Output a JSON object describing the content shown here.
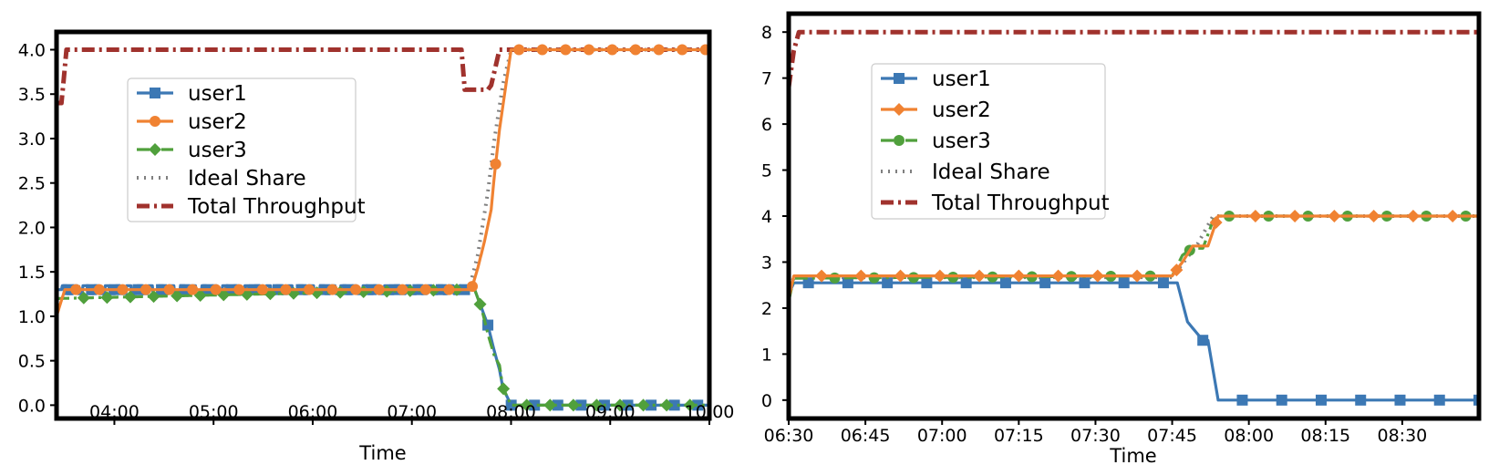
{
  "chart_data": [
    {
      "type": "line",
      "xlabel": "Time",
      "ylabel": "",
      "x_unit": "HH:MM",
      "xlim": [
        "03:25",
        "10:00"
      ],
      "ylim": [
        -0.15,
        4.2
      ],
      "grid": false,
      "legend_placement": "upper-left",
      "x_ticks": [
        "04:00",
        "05:00",
        "06:00",
        "07:00",
        "08:00",
        "09:00",
        "10:00"
      ],
      "y_ticks": [
        "0.0",
        "0.5",
        "1.0",
        "1.5",
        "2.0",
        "2.5",
        "3.0",
        "3.5",
        "4.0"
      ],
      "series": [
        {
          "name": "user1",
          "color": "#3c78b4",
          "style": "solid",
          "marker": "square",
          "x": [
            "03:25",
            "07:30",
            "07:38",
            "07:42",
            "07:46",
            "07:50",
            "07:53",
            "07:55",
            "08:00",
            "08:30",
            "09:00",
            "09:30",
            "10:00"
          ],
          "y": [
            1.3,
            1.3,
            1.3,
            1.1,
            0.9,
            0.6,
            0.4,
            0.2,
            0.0,
            0.0,
            0.0,
            0.0,
            0.0
          ]
        },
        {
          "name": "user2",
          "color": "#f08232",
          "style": "solid",
          "marker": "circle",
          "x": [
            "03:25",
            "03:30",
            "07:30",
            "07:36",
            "07:40",
            "07:44",
            "07:48",
            "07:50",
            "07:53",
            "08:00",
            "08:30",
            "09:00",
            "09:30",
            "10:00"
          ],
          "y": [
            1.0,
            1.3,
            1.3,
            1.3,
            1.55,
            1.85,
            2.2,
            2.6,
            3.1,
            4.0,
            4.0,
            4.0,
            4.0,
            4.0
          ]
        },
        {
          "name": "user3",
          "color": "#50a03c",
          "style": "dashdot",
          "marker": "diamond",
          "x": [
            "03:25",
            "07:30",
            "07:38",
            "07:42",
            "07:46",
            "07:50",
            "07:53",
            "07:55",
            "08:00",
            "08:30",
            "09:00",
            "09:30",
            "10:00"
          ],
          "y": [
            1.2,
            1.3,
            1.3,
            1.1,
            0.8,
            0.55,
            0.45,
            0.2,
            0.0,
            0.0,
            0.0,
            0.0,
            0.0
          ]
        },
        {
          "name": "Ideal Share",
          "color": "#808080",
          "style": "dotted",
          "marker": "none",
          "x": [
            "03:25",
            "07:35",
            "07:40",
            "07:46",
            "07:50",
            "07:55",
            "08:00",
            "10:00"
          ],
          "y": [
            1.33,
            1.33,
            1.7,
            2.4,
            3.0,
            3.6,
            4.0,
            4.0
          ]
        },
        {
          "name": "Total Throughput",
          "color": "#a0322d",
          "style": "dashdot",
          "marker": "none",
          "x": [
            "03:25",
            "03:28",
            "03:31",
            "07:30",
            "07:32",
            "07:46",
            "07:48",
            "07:53",
            "10:00"
          ],
          "y": [
            3.4,
            3.4,
            4.0,
            4.0,
            3.55,
            3.55,
            3.6,
            4.0,
            4.0
          ]
        }
      ]
    },
    {
      "type": "line",
      "xlabel": "Time",
      "ylabel": "",
      "x_unit": "HH:MM",
      "xlim": [
        "06:30",
        "08:45"
      ],
      "ylim": [
        -0.4,
        8.4
      ],
      "grid": false,
      "legend_placement": "upper-left",
      "x_ticks": [
        "06:30",
        "06:45",
        "07:00",
        "07:15",
        "07:30",
        "07:45",
        "08:00",
        "08:15",
        "08:30"
      ],
      "y_ticks": [
        "0",
        "1",
        "2",
        "3",
        "4",
        "5",
        "6",
        "7",
        "8"
      ],
      "series": [
        {
          "name": "user1",
          "color": "#3c78b4",
          "style": "solid",
          "marker": "square",
          "x": [
            "06:30",
            "06:31",
            "07:44",
            "07:46",
            "07:48",
            "07:51",
            "07:52",
            "07:54",
            "08:45"
          ],
          "y": [
            2.3,
            2.55,
            2.55,
            2.55,
            1.7,
            1.3,
            1.3,
            0.0,
            0.0
          ]
        },
        {
          "name": "user2",
          "color": "#f08232",
          "style": "solid",
          "marker": "diamond",
          "x": [
            "06:30",
            "06:31",
            "07:45",
            "07:47",
            "07:49",
            "07:51",
            "07:52",
            "07:54",
            "08:45"
          ],
          "y": [
            2.2,
            2.7,
            2.7,
            3.0,
            3.35,
            3.35,
            3.35,
            4.0,
            4.0
          ]
        },
        {
          "name": "user3",
          "color": "#50a03c",
          "style": "dashdot",
          "marker": "circle",
          "x": [
            "06:30",
            "06:31",
            "07:45",
            "07:47",
            "07:49",
            "07:51",
            "07:53",
            "07:54",
            "08:45"
          ],
          "y": [
            2.15,
            2.65,
            2.7,
            3.15,
            3.3,
            3.3,
            3.9,
            4.0,
            4.0
          ]
        },
        {
          "name": "Ideal Share",
          "color": "#808080",
          "style": "dotted",
          "marker": "none",
          "x": [
            "06:30",
            "06:31",
            "07:45",
            "07:50",
            "07:53",
            "08:45"
          ],
          "y": [
            2.3,
            2.67,
            2.67,
            3.4,
            4.0,
            4.0
          ]
        },
        {
          "name": "Total Throughput",
          "color": "#a0322d",
          "style": "dashdot",
          "marker": "none",
          "x": [
            "06:30",
            "06:31",
            "06:32",
            "08:45"
          ],
          "y": [
            6.8,
            7.6,
            8.0,
            8.0
          ]
        }
      ]
    }
  ]
}
